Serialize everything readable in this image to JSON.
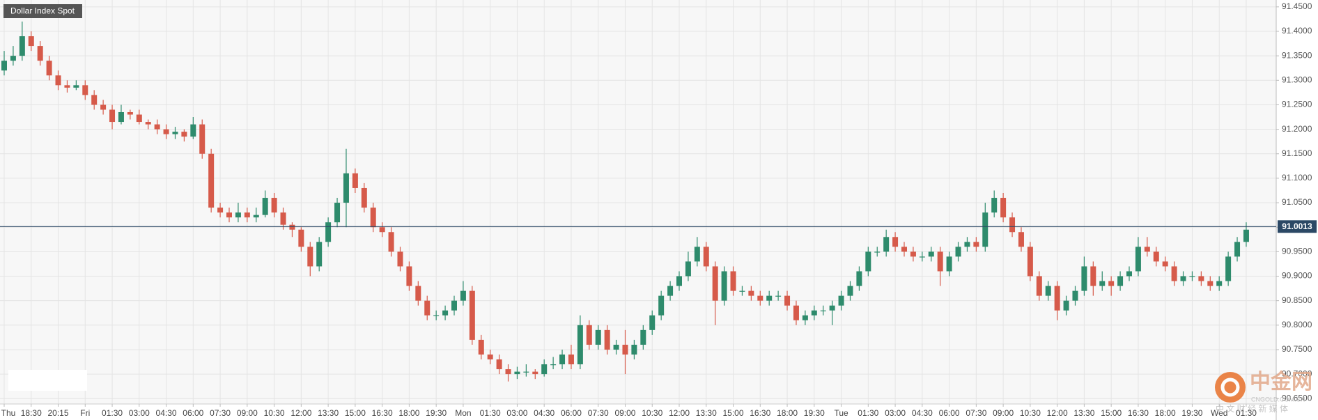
{
  "chart_data": {
    "type": "candlestick",
    "title": "Dollar Index Spot",
    "categories": [
      "Thu",
      null,
      null,
      "18:30",
      null,
      null,
      "20:15",
      null,
      null,
      "Fri",
      null,
      null,
      "01:30",
      null,
      null,
      "03:00",
      null,
      null,
      "04:30",
      null,
      null,
      "06:00",
      null,
      null,
      "07:30",
      null,
      null,
      "09:00",
      null,
      null,
      "10:30",
      null,
      null,
      "12:00",
      null,
      null,
      "13:30",
      null,
      null,
      "15:00",
      null,
      null,
      "16:30",
      null,
      null,
      "18:00",
      null,
      null,
      "19:30",
      null,
      null,
      "Mon",
      null,
      null,
      "01:30",
      null,
      null,
      "03:00",
      null,
      null,
      "04:30",
      null,
      null,
      "06:00",
      null,
      null,
      "07:30",
      null,
      null,
      "09:00",
      null,
      null,
      "10:30",
      null,
      null,
      "12:00",
      null,
      null,
      "13:30",
      null,
      null,
      "15:00",
      null,
      null,
      "16:30",
      null,
      null,
      "18:00",
      null,
      null,
      "19:30",
      null,
      null,
      "Tue",
      null,
      null,
      "01:30",
      null,
      null,
      "03:00",
      null,
      null,
      "04:30",
      null,
      null,
      "06:00",
      null,
      null,
      "07:30",
      null,
      null,
      "09:00",
      null,
      null,
      "10:30",
      null,
      null,
      "12:00",
      null,
      null,
      "13:30",
      null,
      null,
      "15:00",
      null,
      null,
      "16:30",
      null,
      null,
      "18:00",
      null,
      null,
      "19:30",
      null,
      null,
      "Wed",
      null,
      null,
      "01:30"
    ],
    "open": [
      91.32,
      91.34,
      91.35,
      91.39,
      91.37,
      91.34,
      91.31,
      91.29,
      91.285,
      91.29,
      91.27,
      91.25,
      91.24,
      91.215,
      91.235,
      91.23,
      91.215,
      91.21,
      91.2,
      91.19,
      91.195,
      91.185,
      91.21,
      91.15,
      91.04,
      91.03,
      91.02,
      91.03,
      91.02,
      91.025,
      91.06,
      91.03,
      91.005,
      90.995,
      90.96,
      90.92,
      90.97,
      91.01,
      91.05,
      91.11,
      91.08,
      91.04,
      91.0,
      90.99,
      90.95,
      90.92,
      90.88,
      90.85,
      90.82,
      90.82,
      90.83,
      90.85,
      90.87,
      90.77,
      90.74,
      90.73,
      90.71,
      90.7,
      90.705,
      90.705,
      90.7,
      90.72,
      90.72,
      90.74,
      90.72,
      90.8,
      90.76,
      90.79,
      90.75,
      90.76,
      90.74,
      90.76,
      90.79,
      90.82,
      90.86,
      90.88,
      90.9,
      90.93,
      90.96,
      90.92,
      90.85,
      90.91,
      90.87,
      90.87,
      90.86,
      90.85,
      90.86,
      90.86,
      90.84,
      90.81,
      90.82,
      90.83,
      90.83,
      90.84,
      90.86,
      90.88,
      90.91,
      90.95,
      90.95,
      90.98,
      90.96,
      90.95,
      90.94,
      90.94,
      90.95,
      90.91,
      90.94,
      90.96,
      90.97,
      90.96,
      91.03,
      91.06,
      91.02,
      90.99,
      90.96,
      90.9,
      90.86,
      90.88,
      90.83,
      90.85,
      90.87,
      90.92,
      90.88,
      90.89,
      90.88,
      90.9,
      90.91,
      90.96,
      90.95,
      90.93,
      90.92,
      90.89,
      90.9,
      90.9,
      90.89,
      90.88,
      90.89,
      90.94,
      90.97
    ],
    "high": [
      91.36,
      91.37,
      91.42,
      91.4,
      91.38,
      91.35,
      91.32,
      91.3,
      91.3,
      91.3,
      91.28,
      91.26,
      91.25,
      91.25,
      91.24,
      91.24,
      91.22,
      91.22,
      91.21,
      91.205,
      91.2,
      91.225,
      91.22,
      91.16,
      91.05,
      91.04,
      91.05,
      91.04,
      91.04,
      91.075,
      91.07,
      91.04,
      91.01,
      91.0,
      90.97,
      90.98,
      91.02,
      91.06,
      91.16,
      91.12,
      91.09,
      91.05,
      91.01,
      91.0,
      90.96,
      90.93,
      90.89,
      90.86,
      90.83,
      90.84,
      90.86,
      90.89,
      90.88,
      90.78,
      90.75,
      90.74,
      90.72,
      90.715,
      90.72,
      90.71,
      90.73,
      90.735,
      90.75,
      90.76,
      90.82,
      90.81,
      90.8,
      90.8,
      90.77,
      90.79,
      90.77,
      90.8,
      90.83,
      90.87,
      90.89,
      90.91,
      90.95,
      90.98,
      90.97,
      90.93,
      90.92,
      90.92,
      90.88,
      90.88,
      90.87,
      90.87,
      90.87,
      90.87,
      90.85,
      90.83,
      90.84,
      90.84,
      90.85,
      90.87,
      90.89,
      90.92,
      90.96,
      90.96,
      90.995,
      90.99,
      90.97,
      90.96,
      90.95,
      90.96,
      90.96,
      90.95,
      90.97,
      90.98,
      90.98,
      91.05,
      91.075,
      91.07,
      91.03,
      91.0,
      90.97,
      90.91,
      90.89,
      90.89,
      90.86,
      90.88,
      90.94,
      90.93,
      90.91,
      90.9,
      90.91,
      90.92,
      90.98,
      90.98,
      90.96,
      90.94,
      90.93,
      90.91,
      90.91,
      90.91,
      90.9,
      90.9,
      90.95,
      90.98,
      91.01
    ],
    "low": [
      91.31,
      91.33,
      91.34,
      91.36,
      91.33,
      91.3,
      91.28,
      91.275,
      91.28,
      91.26,
      91.24,
      91.23,
      91.2,
      91.21,
      91.22,
      91.21,
      91.2,
      91.19,
      91.18,
      91.18,
      91.175,
      91.18,
      91.14,
      91.03,
      91.02,
      91.01,
      91.01,
      91.01,
      91.01,
      91.02,
      91.02,
      90.995,
      90.98,
      90.95,
      90.9,
      90.91,
      90.96,
      91.0,
      91.0,
      91.07,
      91.03,
      90.99,
      90.98,
      90.94,
      90.91,
      90.87,
      90.84,
      90.81,
      90.81,
      90.81,
      90.82,
      90.84,
      90.76,
      90.73,
      90.72,
      90.7,
      90.685,
      90.69,
      90.695,
      90.69,
      90.695,
      90.71,
      90.71,
      90.71,
      90.71,
      90.75,
      90.75,
      90.74,
      90.74,
      90.7,
      90.73,
      90.75,
      90.78,
      90.81,
      90.85,
      90.87,
      90.89,
      90.92,
      90.91,
      90.8,
      90.84,
      90.86,
      90.86,
      90.85,
      90.84,
      90.84,
      90.85,
      90.83,
      90.8,
      90.8,
      90.81,
      90.82,
      90.8,
      90.83,
      90.85,
      90.87,
      90.9,
      90.94,
      90.94,
      90.95,
      90.94,
      90.93,
      90.93,
      90.93,
      90.88,
      90.9,
      90.93,
      90.95,
      90.95,
      90.95,
      91.02,
      91.01,
      90.98,
      90.95,
      90.89,
      90.85,
      90.85,
      90.81,
      90.82,
      90.84,
      90.86,
      90.86,
      90.87,
      90.86,
      90.87,
      90.89,
      90.9,
      90.94,
      90.92,
      90.91,
      90.88,
      90.88,
      90.89,
      90.88,
      90.87,
      90.87,
      90.88,
      90.93,
      90.96
    ],
    "close": [
      91.34,
      91.35,
      91.39,
      91.37,
      91.34,
      91.31,
      91.29,
      91.285,
      91.29,
      91.27,
      91.25,
      91.24,
      91.215,
      91.235,
      91.23,
      91.215,
      91.21,
      91.2,
      91.19,
      91.195,
      91.185,
      91.21,
      91.15,
      91.04,
      91.03,
      91.02,
      91.03,
      91.02,
      91.025,
      91.06,
      91.03,
      91.005,
      90.995,
      90.96,
      90.92,
      90.97,
      91.01,
      91.05,
      91.11,
      91.08,
      91.04,
      91.0,
      90.99,
      90.95,
      90.92,
      90.88,
      90.85,
      90.82,
      90.82,
      90.83,
      90.85,
      90.87,
      90.77,
      90.74,
      90.73,
      90.71,
      90.7,
      90.705,
      90.705,
      90.7,
      90.72,
      90.72,
      90.74,
      90.72,
      90.8,
      90.76,
      90.79,
      90.75,
      90.76,
      90.74,
      90.76,
      90.79,
      90.82,
      90.86,
      90.88,
      90.9,
      90.93,
      90.96,
      90.92,
      90.85,
      90.91,
      90.87,
      90.87,
      90.86,
      90.85,
      90.86,
      90.86,
      90.84,
      90.81,
      90.82,
      90.83,
      90.83,
      90.84,
      90.86,
      90.88,
      90.91,
      90.95,
      90.95,
      90.98,
      90.96,
      90.95,
      90.94,
      90.94,
      90.95,
      90.91,
      90.94,
      90.96,
      90.97,
      90.96,
      91.03,
      91.06,
      91.02,
      90.99,
      90.96,
      90.9,
      90.86,
      90.88,
      90.83,
      90.85,
      90.87,
      90.92,
      90.88,
      90.89,
      90.88,
      90.9,
      90.91,
      90.96,
      90.95,
      90.93,
      90.92,
      90.89,
      90.9,
      90.9,
      90.89,
      90.88,
      90.89,
      90.94,
      90.97,
      90.995
    ],
    "up_color": "#2e8b6c",
    "down_color": "#d65a4a",
    "ylim": [
      90.639,
      91.464
    ],
    "yticks": [
      {
        "value": 91.45,
        "label": "91.4500"
      },
      {
        "value": 91.4,
        "label": "91.4000"
      },
      {
        "value": 91.35,
        "label": "91.3500"
      },
      {
        "value": 91.3,
        "label": "91.3000"
      },
      {
        "value": 91.25,
        "label": "91.2500"
      },
      {
        "value": 91.2,
        "label": "91.2000"
      },
      {
        "value": 91.15,
        "label": "91.1500"
      },
      {
        "value": 91.1,
        "label": "91.1000"
      },
      {
        "value": 91.05,
        "label": "91.0500"
      },
      {
        "value": 91.0,
        "label": "91.0000"
      },
      {
        "value": 90.95,
        "label": "90.9500"
      },
      {
        "value": 90.9,
        "label": "90.9000"
      },
      {
        "value": 90.85,
        "label": "90.8500"
      },
      {
        "value": 90.8,
        "label": "90.8000"
      },
      {
        "value": 90.75,
        "label": "90.7500"
      },
      {
        "value": 90.7,
        "label": "90.7000"
      },
      {
        "value": 90.65,
        "label": "90.6500"
      }
    ],
    "last_price": 91.0013,
    "last_price_color": "#2b4865",
    "grid": true
  },
  "watermark": {
    "name": "中金网",
    "domain": "CNGOLD.COM.CN",
    "tagline": "中 文 财 经 新 媒 体"
  }
}
